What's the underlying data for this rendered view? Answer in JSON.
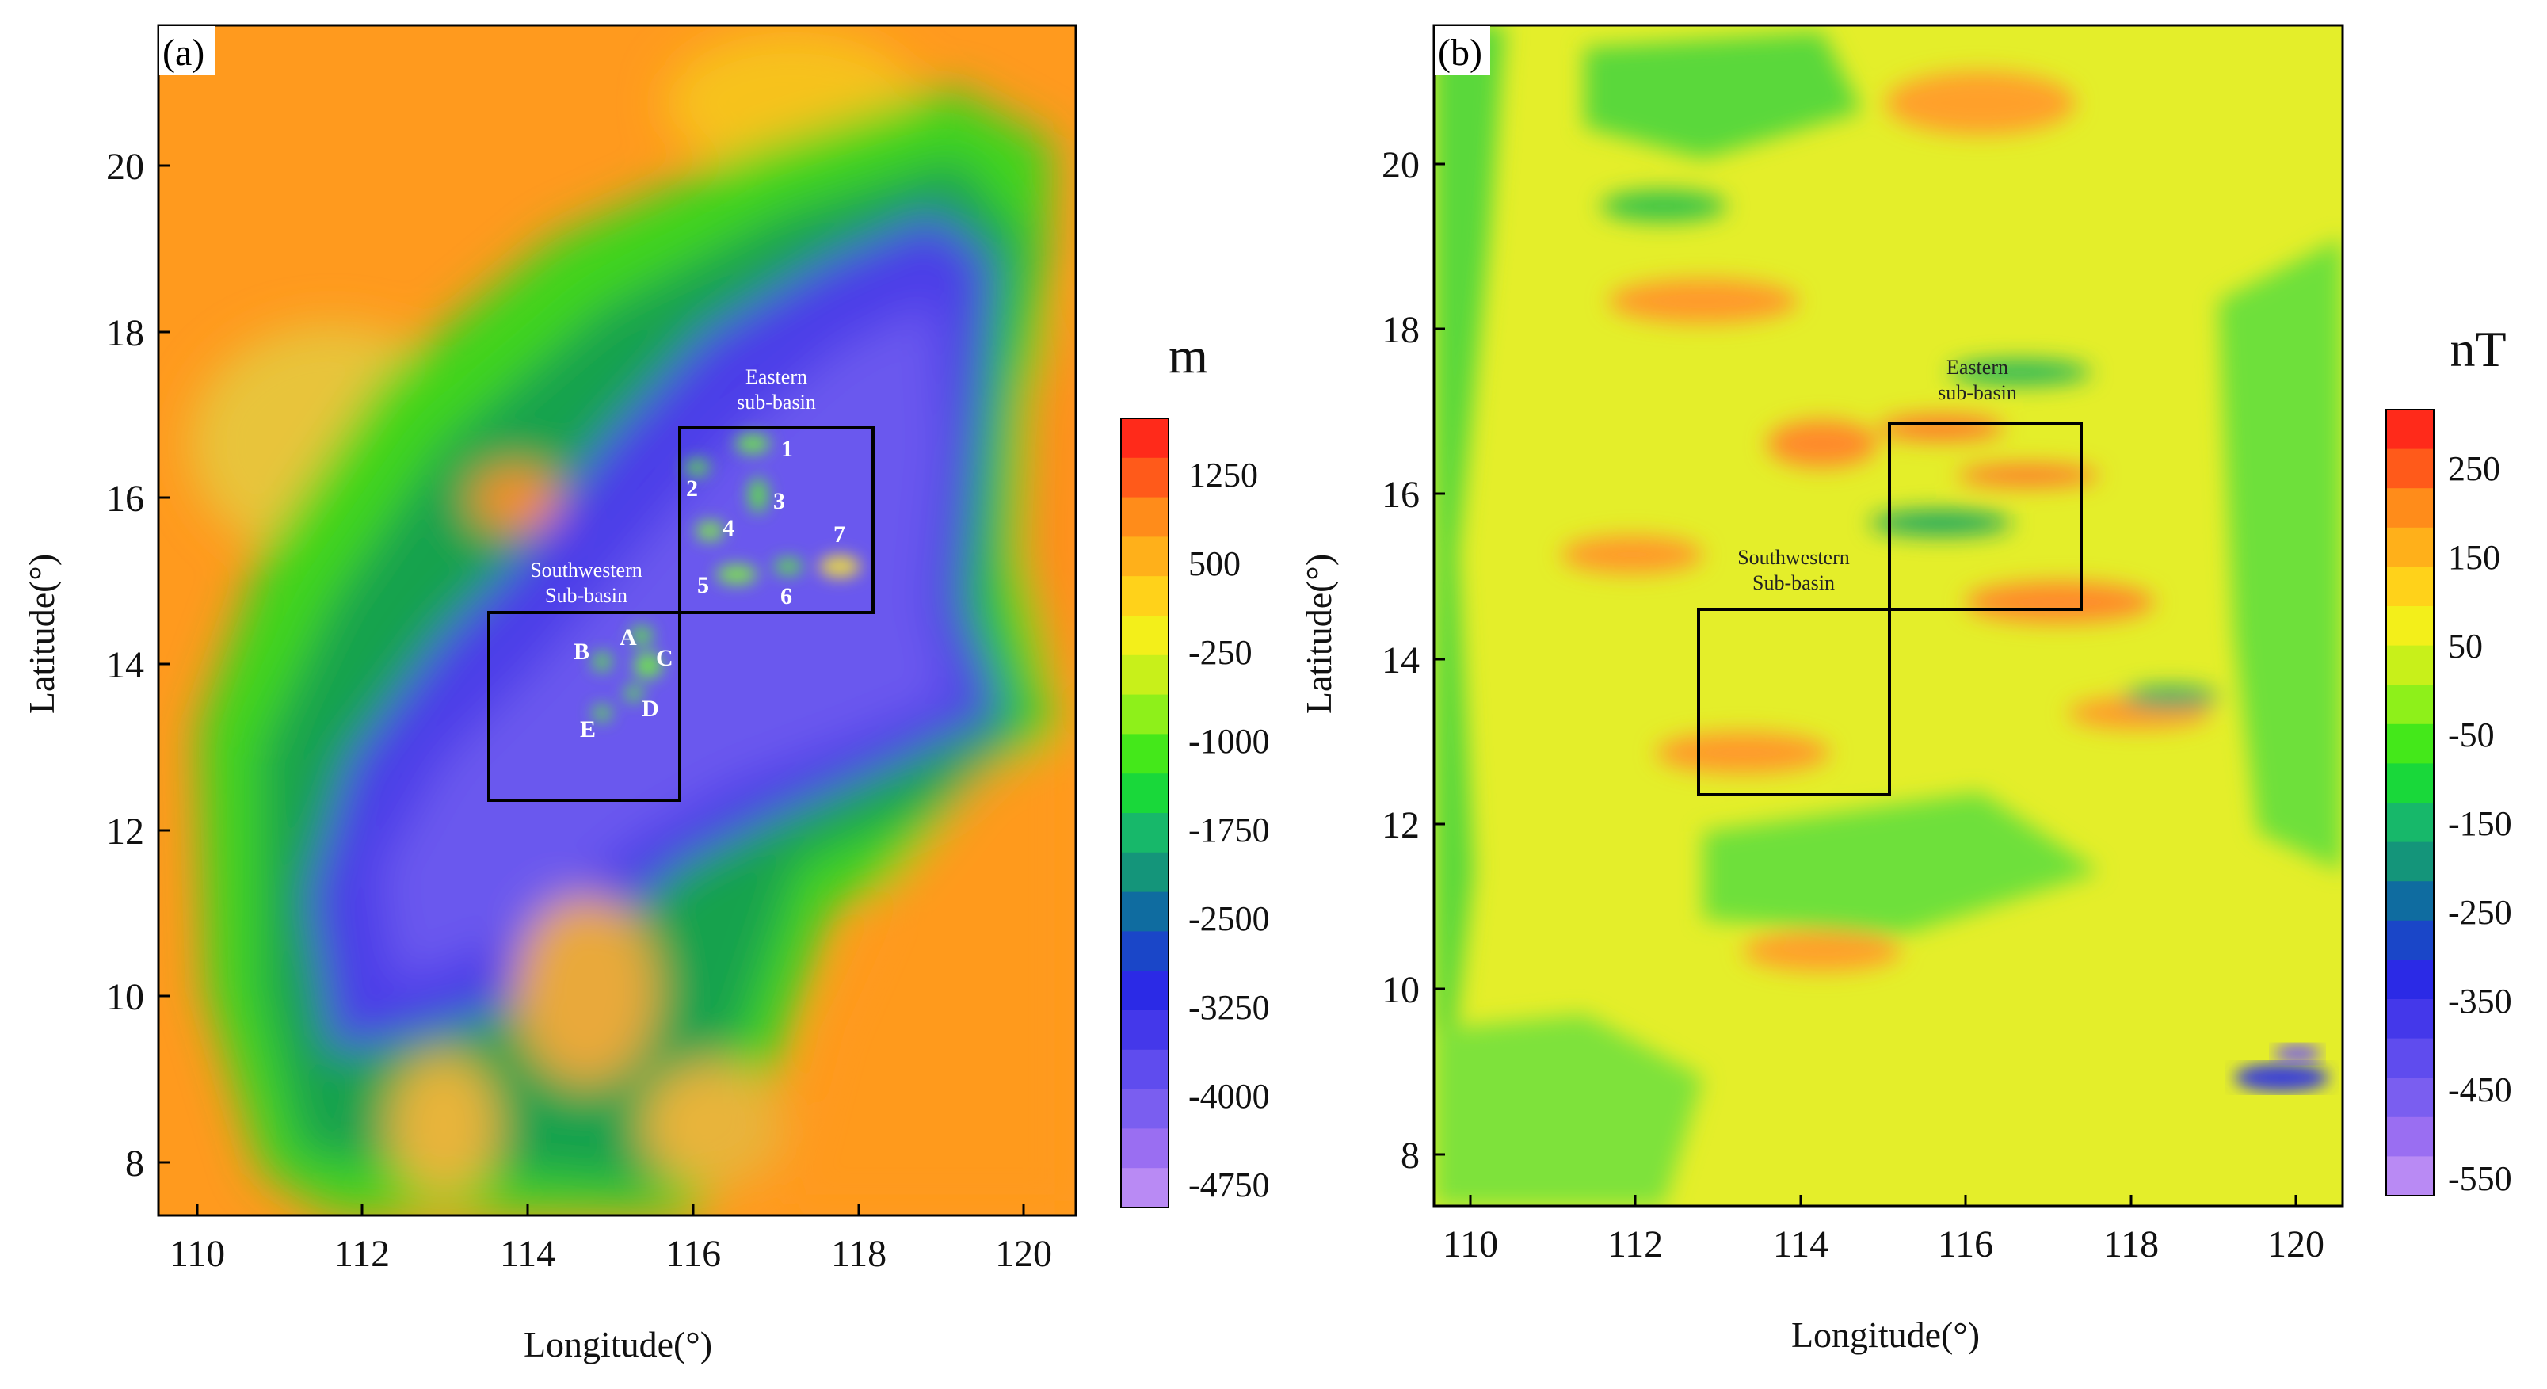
{
  "panels": [
    {
      "label": "(a)",
      "unit": "m",
      "xlabel": "Longitude(°)",
      "ylabel": "Latitude(°)",
      "x_ticks": [
        "110",
        "112",
        "114",
        "116",
        "118",
        "120"
      ],
      "y_ticks": [
        "8",
        "10",
        "12",
        "14",
        "16",
        "18",
        "20"
      ],
      "colorbar_ticks": [
        "1250",
        "500",
        "-250",
        "-1000",
        "-1750",
        "-2500",
        "-3250",
        "-4000",
        "-4750"
      ],
      "colorbar_colors": [
        "#ff2a1a",
        "#ff5a1a",
        "#ff8c1a",
        "#ffb01a",
        "#ffd21a",
        "#f3ef1a",
        "#c8f01a",
        "#8ef01a",
        "#44e81a",
        "#19d83a",
        "#17b86a",
        "#14957a",
        "#0f6ca0",
        "#1a46c8",
        "#2b2ae6",
        "#4438ea",
        "#5f4cee",
        "#7a5ef0",
        "#9a6ef2",
        "#b98af4"
      ],
      "regions": [
        {
          "name_line1": "Eastern",
          "name_line2": "sub-basin"
        },
        {
          "name_line1": "Southwestern",
          "name_line2": "Sub-basin"
        }
      ],
      "seamounts_numbered": [
        "1",
        "2",
        "3",
        "4",
        "5",
        "6",
        "7"
      ],
      "seamounts_lettered": [
        "A",
        "B",
        "C",
        "D",
        "E"
      ]
    },
    {
      "label": "(b)",
      "unit": "nT",
      "xlabel": "Longitude(°)",
      "ylabel": "Latitude(°)",
      "x_ticks": [
        "110",
        "112",
        "114",
        "116",
        "118",
        "120"
      ],
      "y_ticks": [
        "8",
        "10",
        "12",
        "14",
        "16",
        "18",
        "20"
      ],
      "colorbar_ticks": [
        "250",
        "150",
        "50",
        "-50",
        "-150",
        "-250",
        "-350",
        "-450",
        "-550"
      ],
      "colorbar_colors": [
        "#ff2a1a",
        "#ff5a1a",
        "#ff8c1a",
        "#ffb01a",
        "#ffd21a",
        "#f3ef1a",
        "#c8f01a",
        "#8ef01a",
        "#44e81a",
        "#19d83a",
        "#17b86a",
        "#14957a",
        "#0f6ca0",
        "#1a46c8",
        "#2b2ae6",
        "#4438ea",
        "#5f4cee",
        "#7a5ef0",
        "#9a6ef2",
        "#b98af4"
      ],
      "regions": [
        {
          "name_line1": "Eastern",
          "name_line2": "sub-basin"
        },
        {
          "name_line1": "Southwestern",
          "name_line2": "Sub-basin"
        }
      ]
    }
  ]
}
